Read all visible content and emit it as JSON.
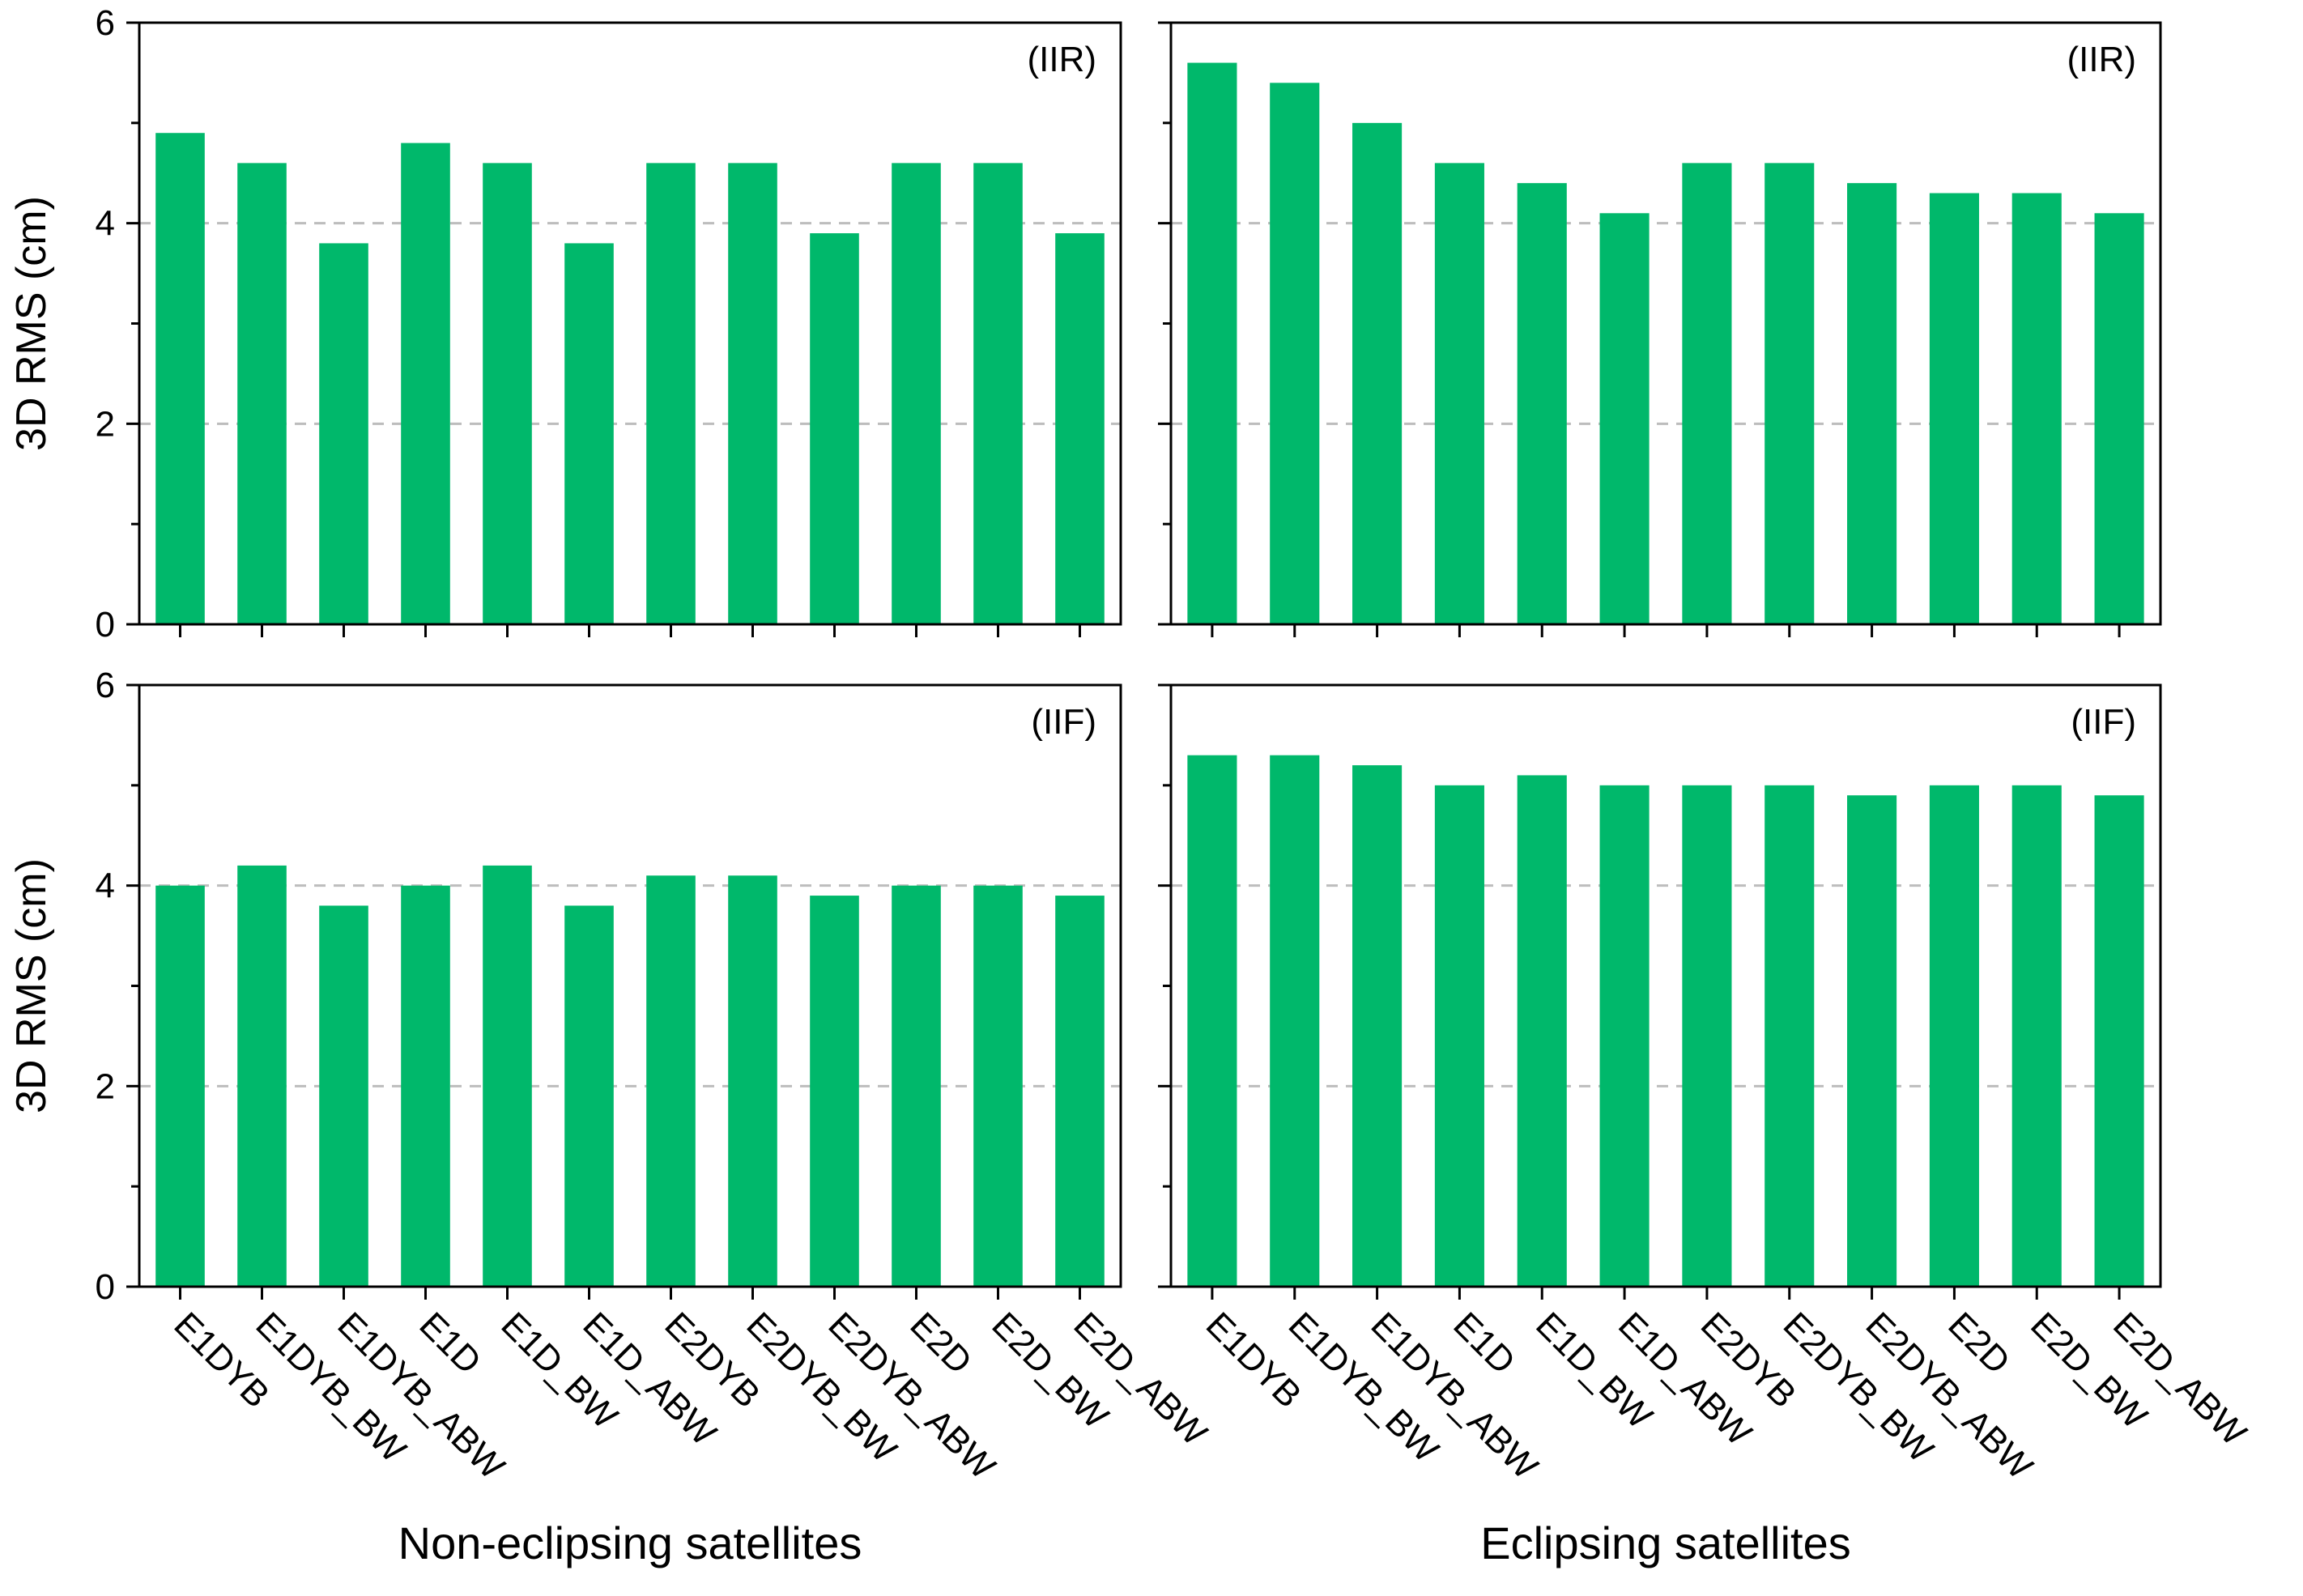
{
  "chart_data": [
    {
      "type": "bar",
      "panel": "top-left",
      "tag": "(IIR)",
      "ylabel": "3D RMS (cm)",
      "ylim": [
        0,
        6
      ],
      "yticks": [
        "0",
        "2",
        "4",
        "6"
      ],
      "grid": "horizontal dashed at 2 and 4",
      "color": "#00b86b",
      "categories": [
        "E1DYB",
        "E1DYB_BW",
        "E1DYB_ABW",
        "E1D",
        "E1D_BW",
        "E1D_ABW",
        "E2DYB",
        "E2DYB_BW",
        "E2DYB_ABW",
        "E2D",
        "E2D_BW",
        "E2D_ABW"
      ],
      "values": [
        4.9,
        4.6,
        3.8,
        4.8,
        4.6,
        3.8,
        4.6,
        4.6,
        3.9,
        4.6,
        4.6,
        3.9
      ]
    },
    {
      "type": "bar",
      "panel": "top-right",
      "tag": "(IIR)",
      "ylim": [
        0,
        6
      ],
      "color": "#00b86b",
      "categories": [
        "E1DYB",
        "E1DYB_BW",
        "E1DYB_ABW",
        "E1D",
        "E1D_BW",
        "E1D_ABW",
        "E2DYB",
        "E2DYB_BW",
        "E2DYB_ABW",
        "E2D",
        "E2D_BW",
        "E2D_ABW"
      ],
      "values": [
        5.6,
        5.4,
        5.0,
        4.6,
        4.4,
        4.1,
        4.6,
        4.6,
        4.4,
        4.3,
        4.3,
        4.1
      ]
    },
    {
      "type": "bar",
      "panel": "bottom-left",
      "tag": "(IIF)",
      "ylabel": "3D RMS (cm)",
      "ylim": [
        0,
        6
      ],
      "yticks": [
        "0",
        "2",
        "4",
        "6"
      ],
      "xgroup": "Non-eclipsing satellites",
      "color": "#00b86b",
      "categories": [
        "E1DYB",
        "E1DYB_BW",
        "E1DYB_ABW",
        "E1D",
        "E1D_BW",
        "E1D_ABW",
        "E2DYB",
        "E2DYB_BW",
        "E2DYB_ABW",
        "E2D",
        "E2D_BW",
        "E2D_ABW"
      ],
      "values": [
        4.0,
        4.2,
        3.8,
        4.0,
        4.2,
        3.8,
        4.1,
        4.1,
        3.9,
        4.0,
        4.0,
        3.9
      ]
    },
    {
      "type": "bar",
      "panel": "bottom-right",
      "tag": "(IIF)",
      "ylim": [
        0,
        6
      ],
      "xgroup": "Eclipsing satellites",
      "color": "#00b86b",
      "categories": [
        "E1DYB",
        "E1DYB_BW",
        "E1DYB_ABW",
        "E1D",
        "E1D_BW",
        "E1D_ABW",
        "E2DYB",
        "E2DYB_BW",
        "E2DYB_ABW",
        "E2D",
        "E2D_BW",
        "E2D_ABW"
      ],
      "values": [
        5.3,
        5.3,
        5.2,
        5.0,
        5.1,
        5.0,
        5.0,
        5.0,
        4.9,
        5.0,
        5.0,
        4.9
      ]
    }
  ]
}
